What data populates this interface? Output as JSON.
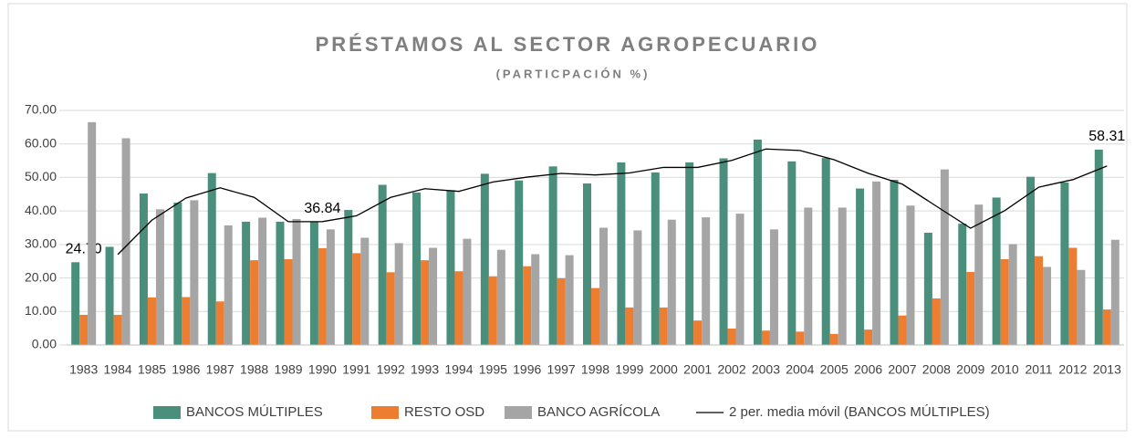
{
  "chart_data": {
    "type": "bar",
    "title": "PRÉSTAMOS AL SECTOR AGROPECUARIO",
    "subtitle": "(PARTICPACIÓN %)",
    "categories": [
      "1983",
      "1984",
      "1985",
      "1986",
      "1987",
      "1988",
      "1989",
      "1990",
      "1991",
      "1992",
      "1993",
      "1994",
      "1995",
      "1996",
      "1997",
      "1998",
      "1999",
      "2000",
      "2001",
      "2002",
      "2003",
      "2004",
      "2005",
      "2006",
      "2007",
      "2008",
      "2009",
      "2010",
      "2011",
      "2012",
      "2013"
    ],
    "series": [
      {
        "name": "BANCOS MÚLTIPLES",
        "color": "#4a8f7b",
        "type": "bar",
        "values": [
          24.7,
          29.3,
          45.2,
          42.5,
          51.3,
          36.8,
          36.8,
          36.84,
          40.3,
          47.8,
          45.5,
          46.2,
          51.1,
          49.1,
          53.3,
          48.2,
          54.5,
          51.5,
          54.5,
          55.7,
          61.3,
          54.8,
          55.8,
          46.7,
          49.3,
          33.5,
          36.2,
          44.0,
          50.2,
          48.5,
          58.31
        ],
        "value_labels": [
          "24.70",
          null,
          null,
          null,
          null,
          null,
          null,
          "36.84",
          null,
          null,
          null,
          null,
          null,
          null,
          null,
          null,
          null,
          null,
          null,
          null,
          null,
          null,
          null,
          null,
          null,
          null,
          null,
          null,
          null,
          null,
          "58.31"
        ]
      },
      {
        "name": "RESTO OSD",
        "color": "#ed7d31",
        "type": "bar",
        "values": [
          9.0,
          9.0,
          14.2,
          14.3,
          13.0,
          25.3,
          25.6,
          28.9,
          27.4,
          21.7,
          25.3,
          22.0,
          20.5,
          23.5,
          19.9,
          17.0,
          11.2,
          11.2,
          7.3,
          4.9,
          4.3,
          4.0,
          3.3,
          4.6,
          8.8,
          13.9,
          21.8,
          25.6,
          26.5,
          29.0,
          10.6
        ]
      },
      {
        "name": "BANCO AGRÍCOLA",
        "color": "#a5a5a5",
        "type": "bar",
        "values": [
          66.5,
          61.7,
          40.5,
          43.2,
          35.7,
          38.0,
          37.6,
          34.5,
          32.0,
          30.4,
          29.0,
          31.7,
          28.4,
          27.1,
          26.8,
          35.0,
          34.2,
          37.4,
          38.1,
          39.2,
          34.5,
          41.0,
          41.0,
          48.8,
          41.6,
          52.4,
          41.9,
          30.1,
          23.3,
          22.4,
          31.4
        ]
      },
      {
        "name": "2 per. media móvil (BANCOS MÚLTIPLES)",
        "color": "#000000",
        "type": "line",
        "values": [
          null,
          27.0,
          37.25,
          43.85,
          46.9,
          44.05,
          36.8,
          36.82,
          38.57,
          44.05,
          46.65,
          45.85,
          48.65,
          50.1,
          51.2,
          50.75,
          51.35,
          53.0,
          53.0,
          55.1,
          58.5,
          58.05,
          55.3,
          51.25,
          48.0,
          41.4,
          34.85,
          40.1,
          47.1,
          49.35,
          53.41
        ]
      }
    ],
    "ylim": [
      0,
      70
    ],
    "yticks": [
      {
        "value": 0,
        "label": "0.00"
      },
      {
        "value": 10,
        "label": "10.00"
      },
      {
        "value": 20,
        "label": "20.00"
      },
      {
        "value": 30,
        "label": "30.00"
      },
      {
        "value": 40,
        "label": "40.00"
      },
      {
        "value": 50,
        "label": "50.00"
      },
      {
        "value": 60,
        "label": "60.00"
      },
      {
        "value": 70,
        "label": "70.00"
      }
    ],
    "grid": true,
    "legend": "bottom"
  }
}
